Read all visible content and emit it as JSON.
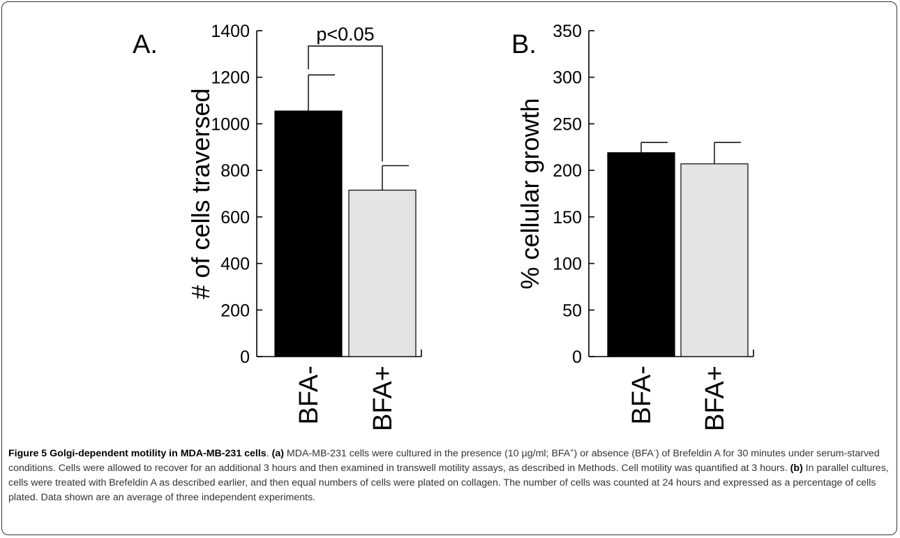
{
  "chart_data": [
    {
      "type": "bar",
      "panel_label": "A.",
      "ylabel": "# of cells traversed",
      "ylim": [
        0,
        1400
      ],
      "yticks": [
        0,
        200,
        400,
        600,
        800,
        1000,
        1200,
        1400
      ],
      "categories": [
        "BFA-",
        "BFA+"
      ],
      "values": [
        1055,
        715
      ],
      "errors": [
        155,
        105
      ],
      "colors": [
        "#000000",
        "#e3e5e4"
      ],
      "annotation": "p<0.05"
    },
    {
      "type": "bar",
      "panel_label": "B.",
      "ylabel": "% cellular growth",
      "ylim": [
        0,
        350
      ],
      "yticks": [
        0,
        50,
        100,
        150,
        200,
        250,
        300,
        350
      ],
      "categories": [
        "BFA-",
        "BFA+"
      ],
      "values": [
        219,
        207
      ],
      "errors": [
        11,
        23
      ],
      "colors": [
        "#000000",
        "#e3e5e4"
      ]
    }
  ],
  "caption": {
    "title": "Figure 5 Golgi-dependent motility in MDA-MB-231 cells",
    "after_title": ". ",
    "a_label": "(a)",
    "a_text_1": " MDA-MB-231 cells were cultured in the presence (10 µg/ml; BFA",
    "sup_plus": "+",
    "a_text_2": ") or absence (BFA",
    "sup_minus": "-",
    "a_text_3": ") of Brefeldin A for 30 minutes under serum-starved conditions. Cells were allowed to recover for an additional 3 hours and then examined in transwell motility assays, as described in Methods. Cell motility was quantified at 3 hours. ",
    "b_label": "(b)",
    "b_text": " In parallel cultures, cells were treated with Brefeldin A as described earlier, and then equal numbers of cells were plated on collagen. The number of cells was counted at 24 hours and expressed as a percentage of cells plated. Data shown are an average of three independent experiments."
  }
}
